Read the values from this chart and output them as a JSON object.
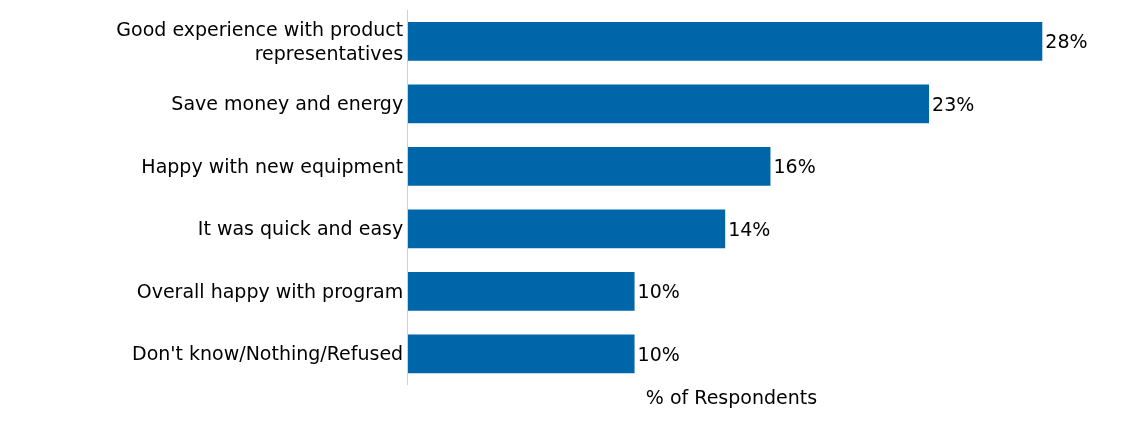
{
  "chart_data": {
    "type": "bar",
    "orientation": "horizontal",
    "xlabel": "% of Respondents",
    "categories": [
      "Good experience with product representatives",
      "Save money and energy",
      "Happy with new equipment",
      "It was quick and easy",
      "Overall happy with program",
      "Don't know/Nothing/Refused"
    ],
    "values": [
      28,
      23,
      16,
      14,
      10,
      10
    ],
    "value_labels": [
      "28%",
      "23%",
      "16%",
      "14%",
      "10%",
      "10%"
    ],
    "color": "#0066aa",
    "grid": false,
    "legend": false
  }
}
